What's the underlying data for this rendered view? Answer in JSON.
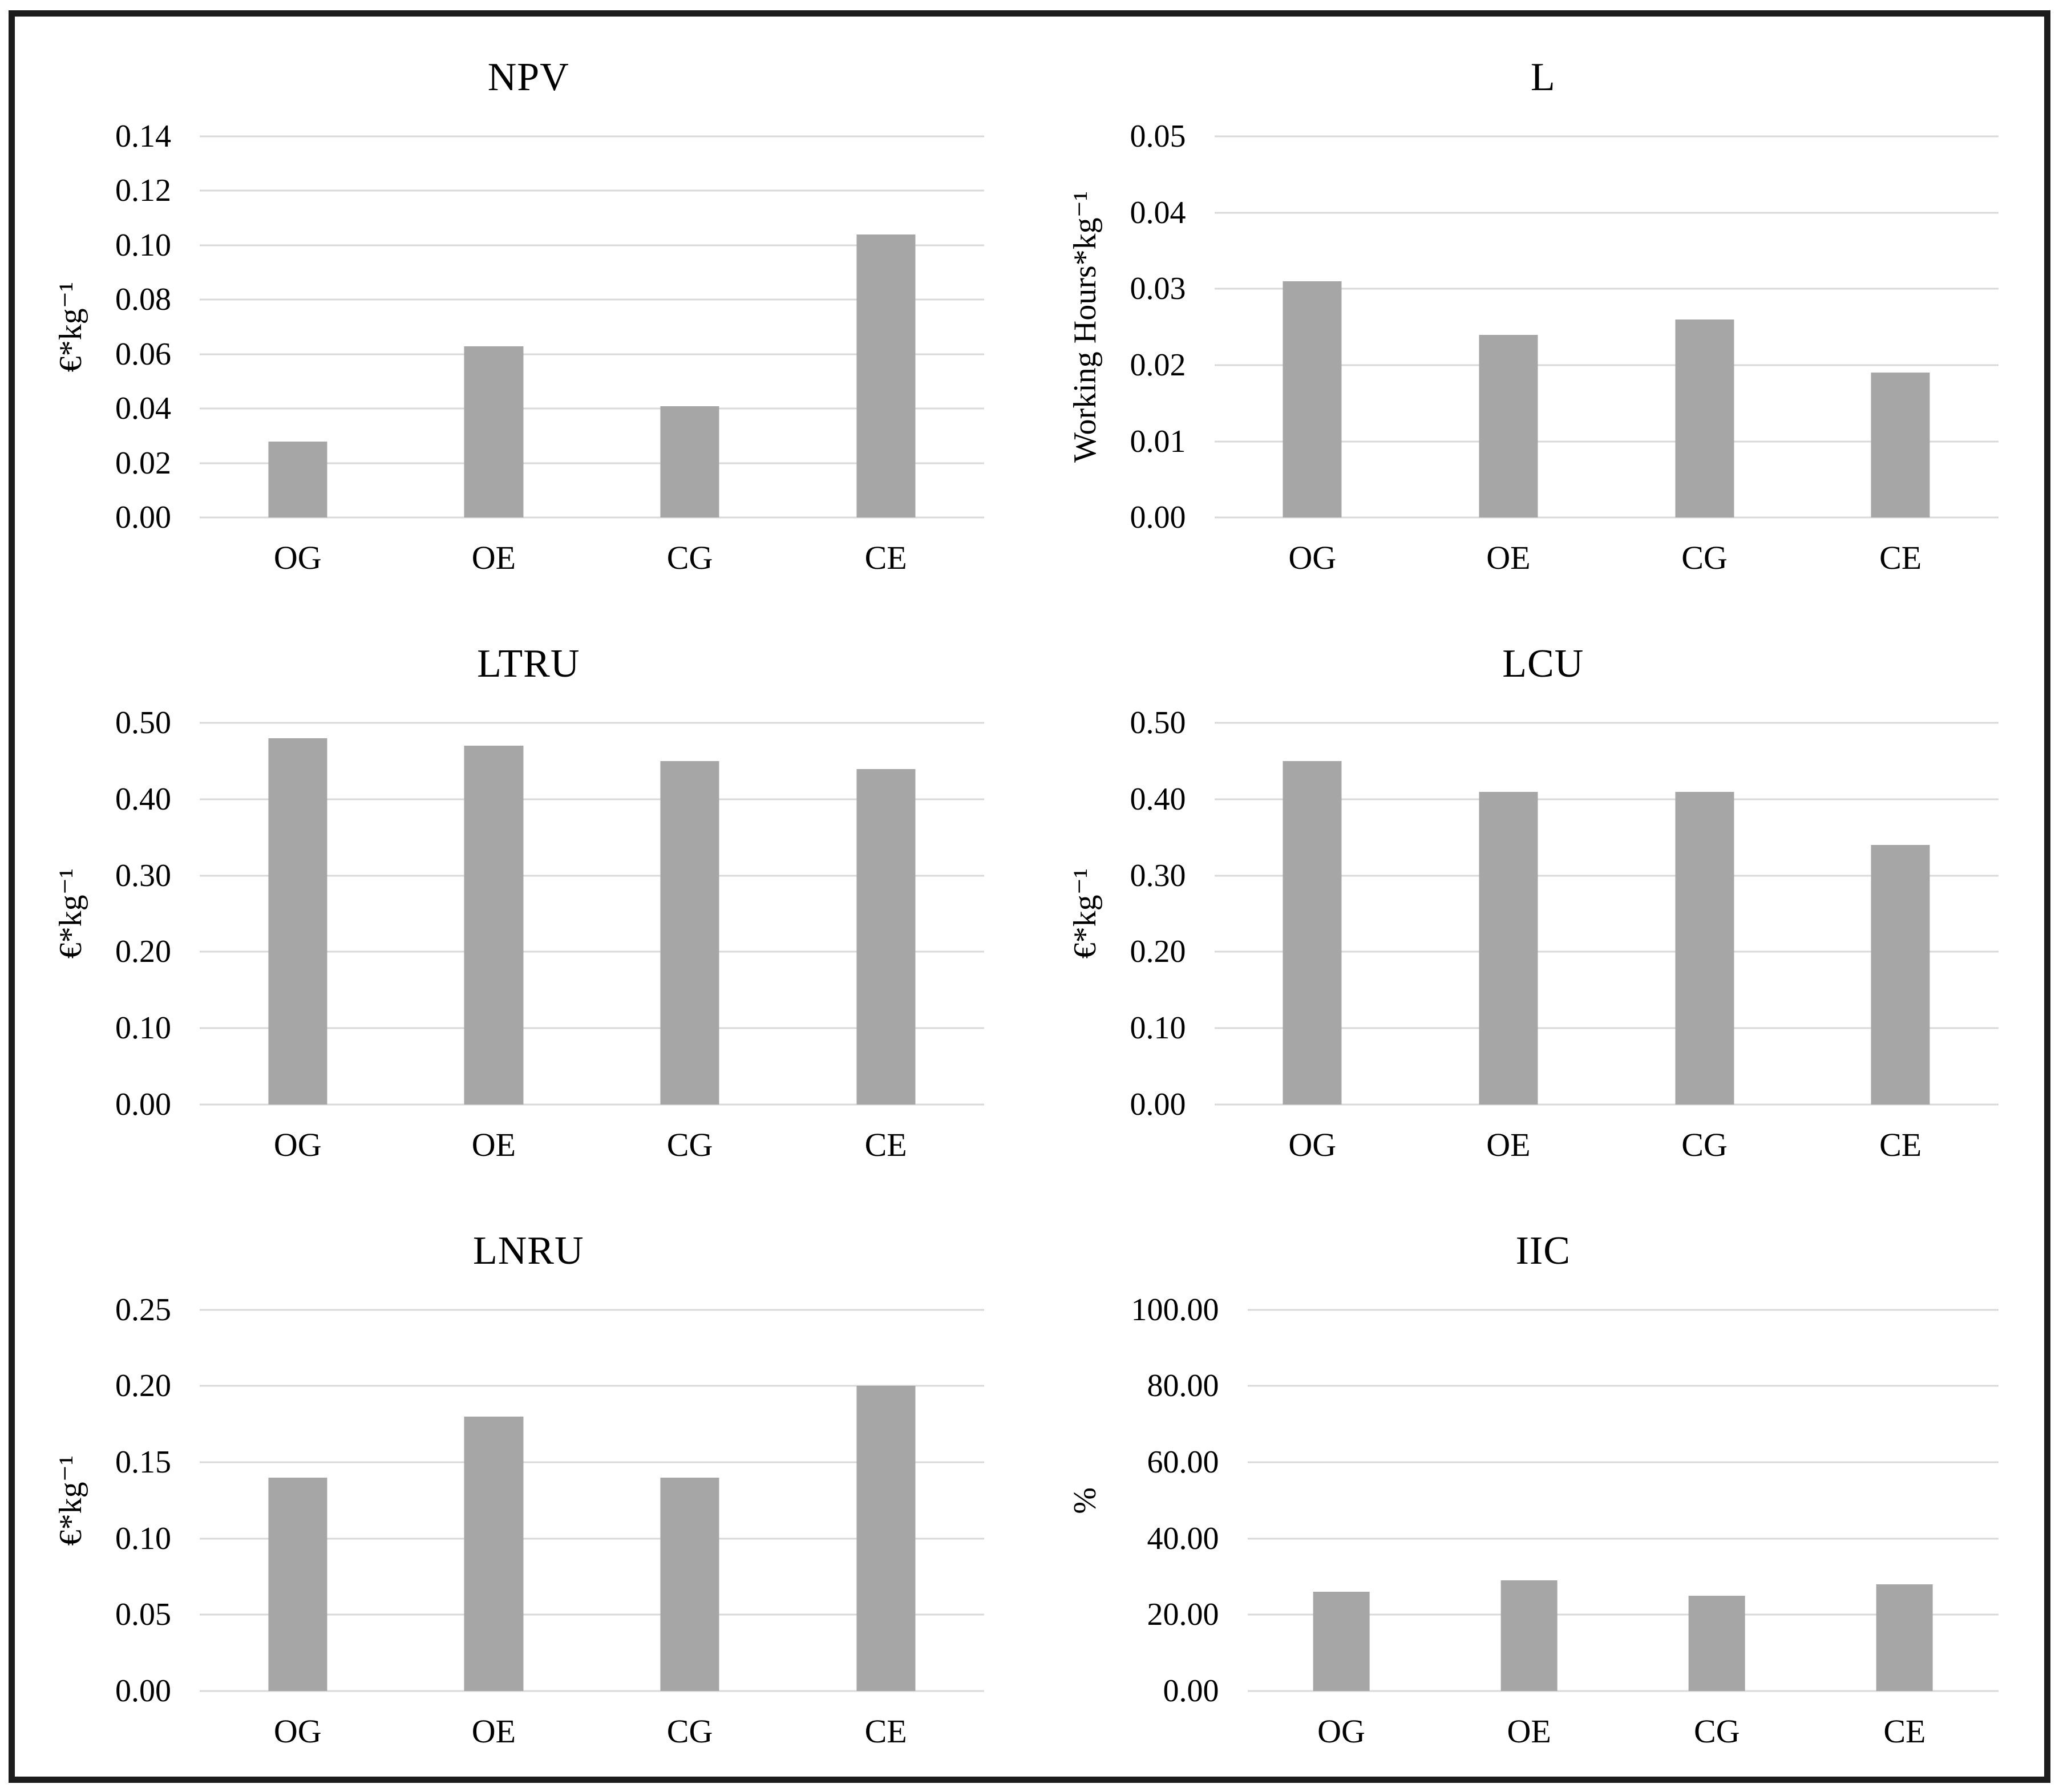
{
  "figure": {
    "background_color": "#ffffff",
    "frame_border_color": "#1c1c1c",
    "bar_color": "#a6a6a6",
    "gridline_color": "#d9d9d9",
    "text_color": "#000000"
  },
  "chart_data": [
    {
      "type": "bar",
      "title": "NPV",
      "ylabel": "€*kg⁻¹",
      "xlabel": "",
      "categories": [
        "OG",
        "OE",
        "CG",
        "CE"
      ],
      "values": [
        0.028,
        0.063,
        0.041,
        0.104
      ],
      "ylim": [
        0,
        0.14
      ],
      "yticks": [
        "0.00",
        "0.02",
        "0.04",
        "0.06",
        "0.08",
        "0.10",
        "0.12",
        "0.14"
      ],
      "grid": true,
      "legend": false
    },
    {
      "type": "bar",
      "title": "L",
      "ylabel": "Working Hours*kg⁻¹",
      "xlabel": "",
      "categories": [
        "OG",
        "OE",
        "CG",
        "CE"
      ],
      "values": [
        0.031,
        0.024,
        0.026,
        0.019
      ],
      "ylim": [
        0,
        0.05
      ],
      "yticks": [
        "0.00",
        "0.01",
        "0.02",
        "0.03",
        "0.04",
        "0.05"
      ],
      "grid": true,
      "legend": false
    },
    {
      "type": "bar",
      "title": "LTRU",
      "ylabel": "€*kg⁻¹",
      "xlabel": "",
      "categories": [
        "OG",
        "OE",
        "CG",
        "CE"
      ],
      "values": [
        0.48,
        0.47,
        0.45,
        0.44
      ],
      "ylim": [
        0,
        0.5
      ],
      "yticks": [
        "0.00",
        "0.10",
        "0.20",
        "0.30",
        "0.40",
        "0.50"
      ],
      "grid": true,
      "legend": false
    },
    {
      "type": "bar",
      "title": "LCU",
      "ylabel": "€*kg⁻¹",
      "xlabel": "",
      "categories": [
        "OG",
        "OE",
        "CG",
        "CE"
      ],
      "values": [
        0.45,
        0.41,
        0.41,
        0.34
      ],
      "ylim": [
        0,
        0.5
      ],
      "yticks": [
        "0.00",
        "0.10",
        "0.20",
        "0.30",
        "0.40",
        "0.50"
      ],
      "grid": true,
      "legend": false
    },
    {
      "type": "bar",
      "title": "LNRU",
      "ylabel": "€*kg⁻¹",
      "xlabel": "",
      "categories": [
        "OG",
        "OE",
        "CG",
        "CE"
      ],
      "values": [
        0.14,
        0.18,
        0.14,
        0.2
      ],
      "ylim": [
        0,
        0.25
      ],
      "yticks": [
        "0.00",
        "0.05",
        "0.10",
        "0.15",
        "0.20",
        "0.25"
      ],
      "grid": true,
      "legend": false
    },
    {
      "type": "bar",
      "title": "IIC",
      "ylabel": "%",
      "xlabel": "",
      "categories": [
        "OG",
        "OE",
        "CG",
        "CE"
      ],
      "values": [
        26,
        29,
        25,
        28
      ],
      "ylim": [
        0,
        100
      ],
      "yticks": [
        "0.00",
        "20.00",
        "40.00",
        "60.00",
        "80.00",
        "100.00"
      ],
      "grid": true,
      "legend": false
    }
  ]
}
